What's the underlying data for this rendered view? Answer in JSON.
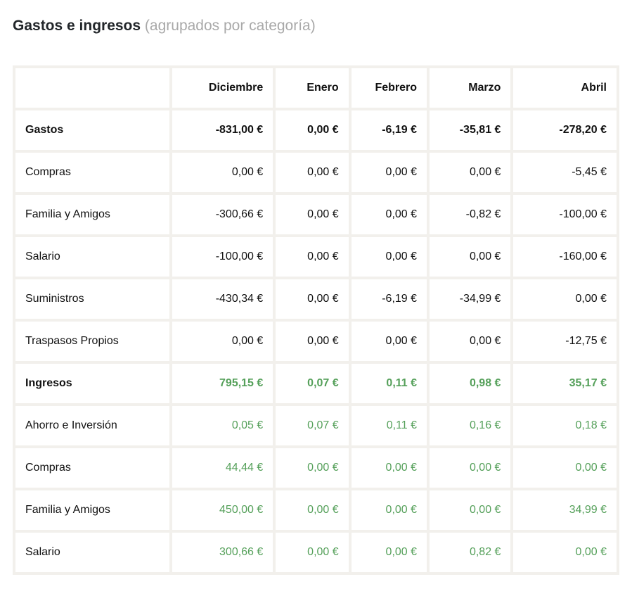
{
  "page": {
    "title": "Gastos e ingresos",
    "subtitle": "(agrupados por categoría)"
  },
  "table": {
    "columns": [
      "Diciembre",
      "Enero",
      "Febrero",
      "Marzo",
      "Abril"
    ],
    "rows": [
      {
        "label": "Gastos",
        "group": true,
        "values": [
          "-831,00 €",
          "0,00 €",
          "-6,19 €",
          "-35,81 €",
          "-278,20 €"
        ]
      },
      {
        "label": "Compras",
        "group": false,
        "values": [
          "0,00 €",
          "0,00 €",
          "0,00 €",
          "0,00 €",
          "-5,45 €"
        ]
      },
      {
        "label": "Familia y Amigos",
        "group": false,
        "values": [
          "-300,66 €",
          "0,00 €",
          "0,00 €",
          "-0,82 €",
          "-100,00 €"
        ]
      },
      {
        "label": "Salario",
        "group": false,
        "values": [
          "-100,00 €",
          "0,00 €",
          "0,00 €",
          "0,00 €",
          "-160,00 €"
        ]
      },
      {
        "label": "Suministros",
        "group": false,
        "values": [
          "-430,34 €",
          "0,00 €",
          "-6,19 €",
          "-34,99 €",
          "0,00 €"
        ]
      },
      {
        "label": "Traspasos Propios",
        "group": false,
        "values": [
          "0,00 €",
          "0,00 €",
          "0,00 €",
          "0,00 €",
          "-12,75 €"
        ]
      },
      {
        "label": "Ingresos",
        "group": true,
        "values": [
          "795,15 €",
          "0,07 €",
          "0,11 €",
          "0,98 €",
          "35,17 €"
        ]
      },
      {
        "label": "Ahorro e Inversión",
        "group": false,
        "values": [
          "0,05 €",
          "0,07 €",
          "0,11 €",
          "0,16 €",
          "0,18 €"
        ]
      },
      {
        "label": "Compras",
        "group": false,
        "values": [
          "44,44 €",
          "0,00 €",
          "0,00 €",
          "0,00 €",
          "0,00 €"
        ]
      },
      {
        "label": "Familia y Amigos",
        "group": false,
        "values": [
          "450,00 €",
          "0,00 €",
          "0,00 €",
          "0,00 €",
          "34,99 €"
        ]
      },
      {
        "label": "Salario",
        "group": false,
        "values": [
          "300,66 €",
          "0,00 €",
          "0,00 €",
          "0,82 €",
          "0,00 €"
        ]
      }
    ]
  },
  "colors": {
    "income_green": "#55a05a",
    "expense_black": "#111111",
    "grid_gray": "#f2f0ec",
    "title_dark": "#22262a",
    "subtitle_gray": "#a9a9a9"
  }
}
